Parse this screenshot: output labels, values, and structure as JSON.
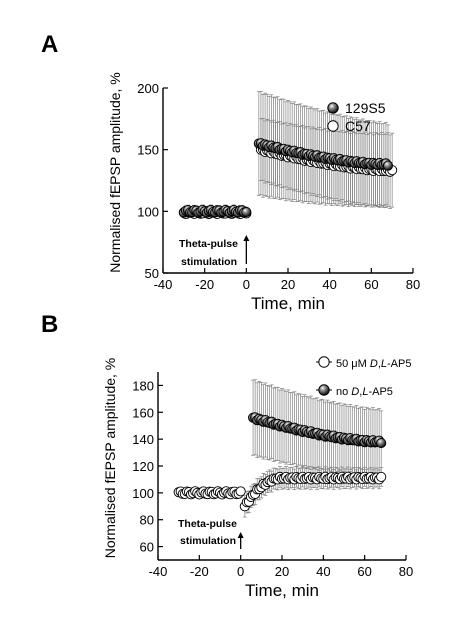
{
  "panels": {
    "a": {
      "letter": "A"
    },
    "b": {
      "letter": "B"
    }
  },
  "chart_data": [
    {
      "type": "scatter",
      "panel": "A",
      "xlabel": "Time, min",
      "ylabel": "Normalised fEPSP amplitude, %",
      "xlim": [
        -40,
        80
      ],
      "ylim": [
        50,
        200
      ],
      "xticks": [
        -40,
        -20,
        0,
        20,
        40,
        60,
        80
      ],
      "yticks": [
        50,
        100,
        150,
        200
      ],
      "legend_position": "top-right",
      "annotation": {
        "text": [
          "Theta-pulse",
          "stimulation"
        ],
        "arrow_at_x": 0
      },
      "series": [
        {
          "name": "129S5",
          "marker": "filled-circle",
          "baseline": {
            "x_start": -30,
            "x_end": 0,
            "step": 1,
            "mean": 100,
            "error": 4
          },
          "post": {
            "x_start": 6,
            "x_end": 68,
            "step": 1,
            "start_value": 155,
            "end_value": 138,
            "error_start": 42,
            "error_end": 33
          }
        },
        {
          "name": "C57",
          "marker": "open-circle",
          "baseline": {
            "x_start": -30,
            "x_end": 0,
            "step": 1,
            "mean": 99,
            "error": 3
          },
          "post": {
            "x_start": 7,
            "x_end": 70,
            "step": 1,
            "start_value": 150,
            "end_value": 133,
            "error_start": 25,
            "error_end": 30
          }
        }
      ]
    },
    {
      "type": "scatter",
      "panel": "B",
      "xlabel": "Time, min",
      "ylabel": "Normalised fEPSP amplitude, %",
      "xlim": [
        -40,
        80
      ],
      "ylim": [
        50,
        190
      ],
      "xticks": [
        -40,
        -20,
        0,
        20,
        40,
        60,
        80
      ],
      "yticks": [
        60,
        80,
        100,
        120,
        140,
        160,
        180
      ],
      "legend_position": "top-right",
      "annotation": {
        "text": [
          "Theta-pulse",
          "stimulation"
        ],
        "arrow_at_x": 0
      },
      "series": [
        {
          "name": "50 μM D,L-AP5",
          "name_parts": [
            {
              "t": "50 ",
              "italic": false
            },
            {
              "t": "μ",
              "italic": false
            },
            {
              "t": "M ",
              "italic": false
            },
            {
              "t": "D",
              "italic": true
            },
            {
              "t": ",",
              "italic": false
            },
            {
              "t": "L",
              "italic": true
            },
            {
              "t": "-AP5",
              "italic": false
            }
          ],
          "marker": "open-circle",
          "baseline": {
            "x_start": -30,
            "x_end": 0,
            "step": 1,
            "mean": 100,
            "error": 3
          },
          "post": {
            "x_start": 2,
            "x_end": 68,
            "step": 1,
            "start_value": 90,
            "plateau_value": 111,
            "rise_time": 18,
            "error_start": 8,
            "error_end": 7
          }
        },
        {
          "name": "no D,L-AP5",
          "name_parts": [
            {
              "t": "no ",
              "italic": false
            },
            {
              "t": "D",
              "italic": true
            },
            {
              "t": ",",
              "italic": false
            },
            {
              "t": "L",
              "italic": true
            },
            {
              "t": "-AP5",
              "italic": false
            }
          ],
          "marker": "filled-circle",
          "post": {
            "x_start": 6,
            "x_end": 68,
            "step": 1,
            "start_value": 156,
            "end_value": 138,
            "error_start": 28,
            "error_end": 24
          }
        }
      ]
    }
  ]
}
